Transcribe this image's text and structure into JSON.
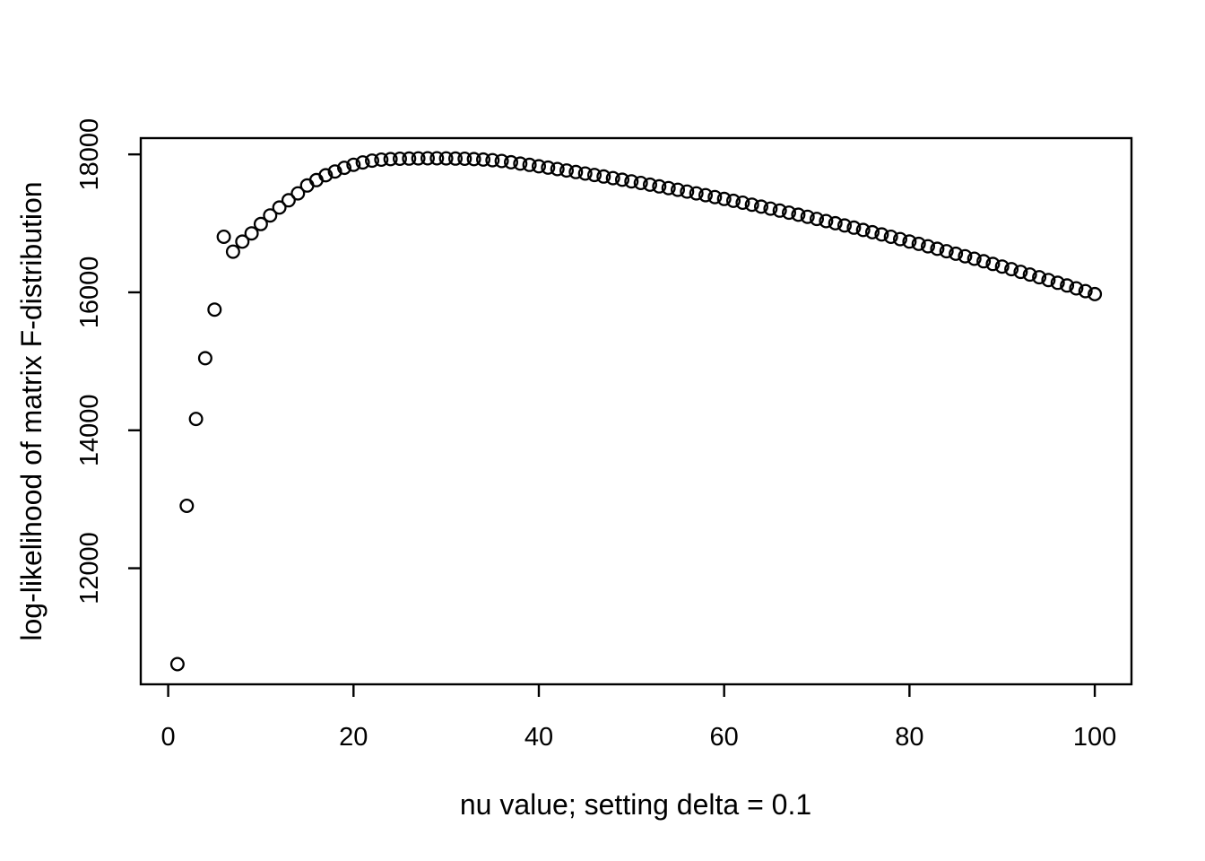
{
  "figure": {
    "background": "#ffffff",
    "foreground": "#000000"
  },
  "chart_data": {
    "type": "scatter",
    "title": "",
    "xlabel": "nu value; setting delta = 0.1",
    "ylabel": "log-likelihood of matrix F-distribution",
    "grid": false,
    "legend_position": "none",
    "xlim": [
      -2.96,
      103.96
    ],
    "ylim": [
      10317,
      18236
    ],
    "x_ticks": [
      0,
      20,
      40,
      60,
      80,
      100
    ],
    "x_tick_labels": [
      "0",
      "20",
      "40",
      "60",
      "80",
      "100"
    ],
    "y_ticks": [
      12000,
      14000,
      16000,
      18000
    ],
    "y_tick_labels": [
      "12000",
      "14000",
      "16000",
      "18000"
    ],
    "marker": {
      "shape": "open-circle",
      "color": "#000000",
      "radius_px": 8,
      "stroke_width_px": 2.3
    },
    "x": [
      1,
      2,
      3,
      4,
      5,
      6,
      7,
      8,
      9,
      10,
      11,
      12,
      13,
      14,
      15,
      16,
      17,
      18,
      19,
      20,
      21,
      22,
      23,
      24,
      25,
      26,
      27,
      28,
      29,
      30,
      31,
      32,
      33,
      34,
      35,
      36,
      37,
      38,
      39,
      40,
      41,
      42,
      43,
      44,
      45,
      46,
      47,
      48,
      49,
      50,
      51,
      52,
      53,
      54,
      55,
      56,
      57,
      58,
      59,
      60,
      61,
      62,
      63,
      64,
      65,
      66,
      67,
      68,
      69,
      70,
      71,
      72,
      73,
      74,
      75,
      76,
      77,
      78,
      79,
      80,
      81,
      82,
      83,
      84,
      85,
      86,
      87,
      88,
      89,
      90,
      91,
      92,
      93,
      94,
      95,
      96,
      97,
      98,
      99,
      100
    ],
    "y": [
      10610,
      12905,
      14165,
      15045,
      15750,
      16805,
      16590,
      16735,
      16855,
      16990,
      17115,
      17230,
      17335,
      17435,
      17550,
      17628,
      17698,
      17752,
      17805,
      17850,
      17884,
      17910,
      17924,
      17932,
      17937,
      17940,
      17942,
      17943,
      17943,
      17942,
      17940,
      17937,
      17932,
      17925,
      17916,
      17905,
      17886,
      17867,
      17848,
      17828,
      17808,
      17787,
      17766,
      17745,
      17723,
      17701,
      17679,
      17656,
      17633,
      17609,
      17586,
      17561,
      17537,
      17512,
      17487,
      17461,
      17435,
      17409,
      17382,
      17355,
      17327,
      17300,
      17271,
      17243,
      17214,
      17185,
      17155,
      17125,
      17095,
      17064,
      17033,
      17002,
      16970,
      16938,
      16905,
      16872,
      16839,
      16806,
      16772,
      16737,
      16703,
      16668,
      16632,
      16596,
      16560,
      16524,
      16487,
      16450,
      16412,
      16374,
      16336,
      16297,
      16258,
      16219,
      16179,
      16139,
      16099,
      16058,
      16017,
      15975
    ]
  }
}
